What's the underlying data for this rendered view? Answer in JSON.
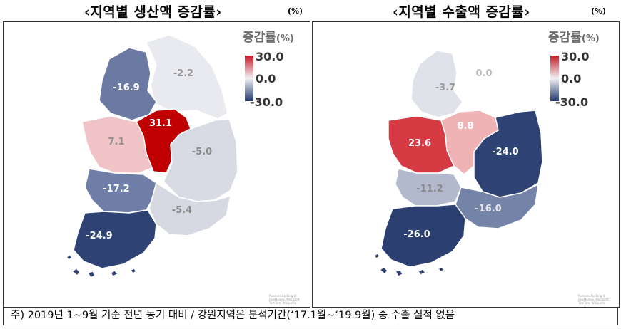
{
  "left": {
    "title": "‹지역별 생산액 증감률›",
    "unit": "(%)",
    "legend": {
      "title": "증감률",
      "unit": "(%)",
      "max": "30.0",
      "mid": "0.0",
      "min": "-30.0"
    },
    "regions": [
      {
        "name": "수도권",
        "value": -16.9,
        "label": "-16.9",
        "color": "#6b7aa3",
        "text_color": "#ffffff"
      },
      {
        "name": "강원",
        "value": -2.2,
        "label": "-2.2",
        "color": "#e9eaef",
        "text_color": "#9a9a9a"
      },
      {
        "name": "충남",
        "value": 7.1,
        "label": "7.1",
        "color": "#f0c4c6",
        "text_color": "#8f8f8f"
      },
      {
        "name": "충북",
        "value": 31.1,
        "label": "31.1",
        "color": "#c00000",
        "text_color": "#ffffff"
      },
      {
        "name": "경북",
        "value": -5.0,
        "label": "-5.0",
        "color": "#d9dbe4",
        "text_color": "#8a8a8a"
      },
      {
        "name": "전북",
        "value": -17.2,
        "label": "-17.2",
        "color": "#6f7ea6",
        "text_color": "#ffffff"
      },
      {
        "name": "경남",
        "value": -5.4,
        "label": "-5.4",
        "color": "#d6d9e2",
        "text_color": "#8a8a8a"
      },
      {
        "name": "전남",
        "value": -24.9,
        "label": "-24.9",
        "color": "#2e4374",
        "text_color": "#ffffff"
      }
    ]
  },
  "right": {
    "title": "‹지역별 수출액 증감률›",
    "unit": "(%)",
    "legend": {
      "title": "증감률",
      "unit": "(%)",
      "max": "30.0",
      "mid": "0.0",
      "min": "-30.0"
    },
    "regions": [
      {
        "name": "강원",
        "value": 0.0,
        "label": "0.0",
        "color": "#ffffff",
        "text_color": "#bdbdbd"
      },
      {
        "name": "수도권",
        "value": -3.7,
        "label": "-3.7",
        "color": "#e0e2e9",
        "text_color": "#9a9a9a"
      },
      {
        "name": "충남",
        "value": 23.6,
        "label": "23.6",
        "color": "#d63b44",
        "text_color": "#ffffff"
      },
      {
        "name": "충북",
        "value": 8.8,
        "label": "8.8",
        "color": "#efb3b6",
        "text_color": "#ffffff"
      },
      {
        "name": "경북",
        "value": -24.0,
        "label": "-24.0",
        "color": "#2e4374",
        "text_color": "#ffffff"
      },
      {
        "name": "전북",
        "value": -11.2,
        "label": "-11.2",
        "color": "#b3b9cc",
        "text_color": "#8a8a8a"
      },
      {
        "name": "경남",
        "value": -16.0,
        "label": "-16.0",
        "color": "#7483a8",
        "text_color": "#e8e8e8"
      },
      {
        "name": "전남",
        "value": -26.0,
        "label": "-26.0",
        "color": "#2b3f70",
        "text_color": "#ffffff"
      }
    ]
  },
  "credit": "Powered by Bing\n© GeoNames, Microsoft, TomTom, Wikipedia",
  "footnote": "주) 2019년 1∼9월 기준 전년 동기 대비 / 강원지역은 분석기간(‘17.1월∼‘19.9월) 중 수출 실적 없음"
}
